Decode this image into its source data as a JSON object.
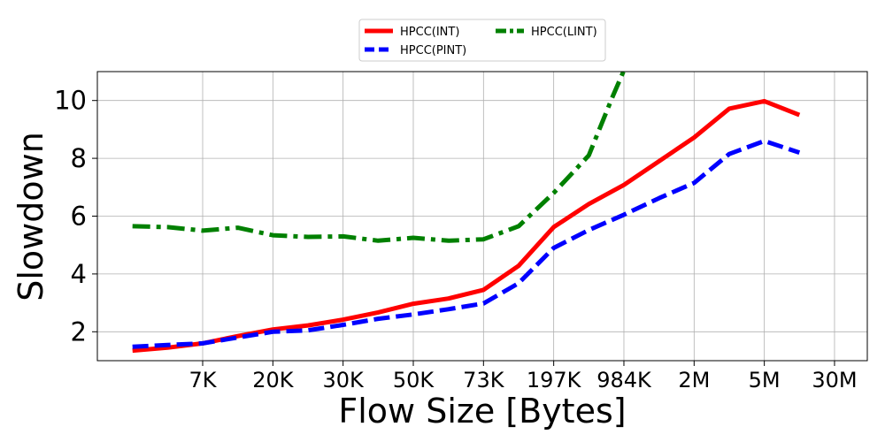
{
  "chart_data": {
    "type": "line",
    "xlabel": "Flow Size [Bytes]",
    "ylabel": "Slowdown",
    "x_tick_labels": [
      "7K",
      "20K",
      "30K",
      "50K",
      "73K",
      "197K",
      "984K",
      "2M",
      "5M",
      "30M"
    ],
    "y_ticks": [
      2,
      4,
      6,
      8,
      10
    ],
    "ylim": [
      1.0,
      11.0
    ],
    "grid": true,
    "legend": "top-center, outside plot",
    "series": [
      {
        "name": "HPCC(INT)",
        "color": "#ff0000",
        "style": "solid",
        "x": [
          -1.0,
          -0.5,
          0.0,
          0.5,
          1.0,
          1.5,
          2.0,
          2.5,
          3.0,
          3.5,
          4.0,
          4.5,
          5.0,
          5.5,
          6.0,
          6.5,
          7.0,
          7.5,
          8.0,
          8.5,
          9.0
        ],
        "y": [
          1.35,
          1.45,
          1.6,
          1.85,
          2.08,
          2.22,
          2.42,
          2.67,
          2.97,
          3.15,
          3.45,
          4.28,
          5.62,
          6.42,
          7.08,
          7.9,
          8.72,
          9.72,
          9.98,
          9.5,
          null
        ]
      },
      {
        "name": "HPCC(PINT)",
        "color": "#0000ff",
        "style": "dashed",
        "x": [
          -1.0,
          -0.5,
          0.0,
          0.5,
          1.0,
          1.5,
          2.0,
          2.5,
          3.0,
          3.5,
          4.0,
          4.5,
          5.0,
          5.5,
          6.0,
          6.5,
          7.0,
          7.5,
          8.0,
          8.5
        ],
        "y": [
          1.48,
          1.54,
          1.6,
          1.8,
          2.0,
          2.05,
          2.24,
          2.45,
          2.6,
          2.78,
          2.98,
          3.68,
          4.9,
          5.52,
          6.05,
          6.62,
          7.15,
          8.15,
          8.6,
          8.2
        ]
      },
      {
        "name": "HPCC(LINT)",
        "color": "#008000",
        "style": "dashdot",
        "x": [
          -1.0,
          -0.5,
          0.0,
          0.5,
          1.0,
          1.5,
          2.0,
          2.5,
          3.0,
          3.5,
          4.0,
          4.5,
          5.0,
          5.5,
          5.85,
          6.1
        ],
        "y": [
          5.65,
          5.62,
          5.5,
          5.6,
          5.34,
          5.28,
          5.3,
          5.15,
          5.25,
          5.15,
          5.2,
          5.65,
          6.8,
          8.1,
          10.2,
          11.6
        ]
      }
    ]
  }
}
